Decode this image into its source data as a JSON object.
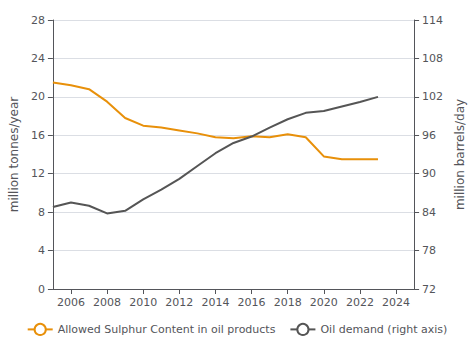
{
  "chart_data": {
    "type": "line",
    "x": [
      2005,
      2006,
      2007,
      2008,
      2009,
      2010,
      2011,
      2012,
      2013,
      2014,
      2015,
      2016,
      2017,
      2018,
      2019,
      2020,
      2021,
      2022,
      2023
    ],
    "series": [
      {
        "name": "Allowed Sulphur Content in oil products",
        "color": "#E8900A",
        "values": [
          21.5,
          21.2,
          20.8,
          19.5,
          17.8,
          17.0,
          16.8,
          16.5,
          16.2,
          15.8,
          15.7,
          15.9,
          15.8,
          16.1,
          15.8,
          13.8,
          13.5,
          13.5,
          13.5
        ]
      },
      {
        "name": "Oil demand (right axis)",
        "color": "#555555",
        "axis": "y2",
        "values": [
          84.8,
          85.5,
          85.0,
          83.8,
          84.2,
          86.0,
          87.5,
          89.2,
          91.2,
          93.2,
          94.8,
          95.8,
          97.2,
          98.5,
          99.5,
          99.8,
          100.5,
          101.2,
          102.0
        ]
      }
    ],
    "xlim": [
      2005,
      2025
    ],
    "xticks": [
      2006,
      2008,
      2010,
      2012,
      2014,
      2016,
      2018,
      2020,
      2022,
      2024
    ],
    "ylim": [
      0,
      28
    ],
    "yticks": [
      0,
      4,
      8,
      12,
      16,
      20,
      24,
      28
    ],
    "y2lim": [
      72,
      114
    ],
    "y2ticks": [
      72,
      78,
      84,
      90,
      96,
      102,
      108,
      114
    ],
    "ylabel": "million tonnes/year",
    "y2label": "million barrels/day",
    "grid": true,
    "legend": "bottom"
  }
}
